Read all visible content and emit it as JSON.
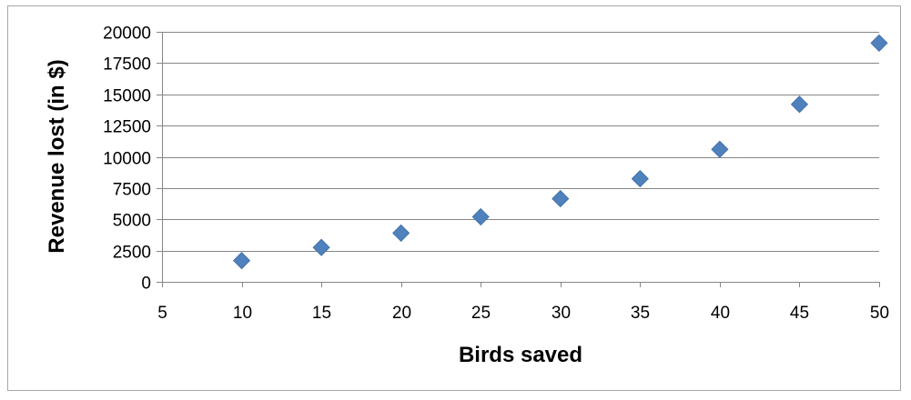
{
  "chart_data": {
    "type": "scatter",
    "title": "",
    "xlabel": "Birds saved",
    "ylabel": "Revenue lost (in $)",
    "xlim": [
      5,
      50
    ],
    "ylim": [
      0,
      20000
    ],
    "xticks": [
      5,
      10,
      15,
      20,
      25,
      30,
      35,
      40,
      45,
      50
    ],
    "yticks": [
      0,
      2500,
      5000,
      7500,
      10000,
      12500,
      15000,
      17500,
      20000
    ],
    "grid": "horizontal",
    "legend": "none",
    "marker": "diamond",
    "colors": {
      "marker": "#4f81bd",
      "grid": "#868686",
      "axis": "#868686",
      "border": "#a6a6a6"
    },
    "series": [
      {
        "x": [
          10,
          15,
          20,
          25,
          30,
          35,
          40,
          45,
          50
        ],
        "y": [
          1700,
          2750,
          3900,
          5200,
          6650,
          8250,
          10600,
          14200,
          19100
        ]
      }
    ]
  }
}
